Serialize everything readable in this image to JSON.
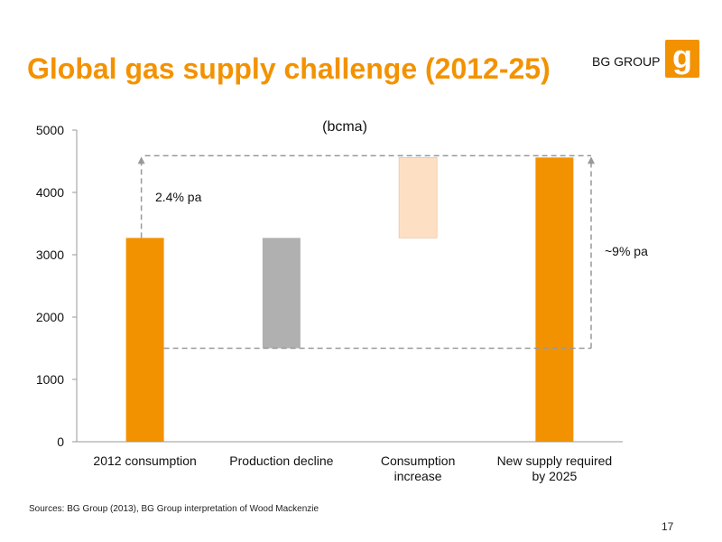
{
  "slide": {
    "title": "Global gas supply challenge (2012-25)",
    "brand": "BG GROUP",
    "logo_letter": "g",
    "source": "Sources: BG Group (2013), BG Group interpretation of Wood Mackenzie",
    "page_number": "17"
  },
  "colors": {
    "accent": "#f39200",
    "grey": "#b0b0b0",
    "light_orange": "#fde0c4"
  },
  "chart_data": {
    "type": "bar",
    "subtype": "waterfall",
    "unit_label": "(bcma)",
    "categories": [
      [
        "2012 consumption"
      ],
      [
        "Production decline"
      ],
      [
        "Consumption",
        "increase"
      ],
      [
        "New supply required",
        "by 2025"
      ]
    ],
    "bars": [
      {
        "base": 0,
        "top": 3270,
        "color": "#f39200"
      },
      {
        "base": 1500,
        "top": 3270,
        "color": "#b0b0b0"
      },
      {
        "base": 3270,
        "top": 4560,
        "color": "#fde0c4"
      },
      {
        "base": 0,
        "top": 4560,
        "color": "#f39200"
      }
    ],
    "ylim": [
      0,
      5000
    ],
    "yticks": [
      0,
      1000,
      2000,
      3000,
      4000,
      5000
    ],
    "grid": false,
    "annotations": [
      "2.4% pa",
      "~9% pa"
    ]
  }
}
